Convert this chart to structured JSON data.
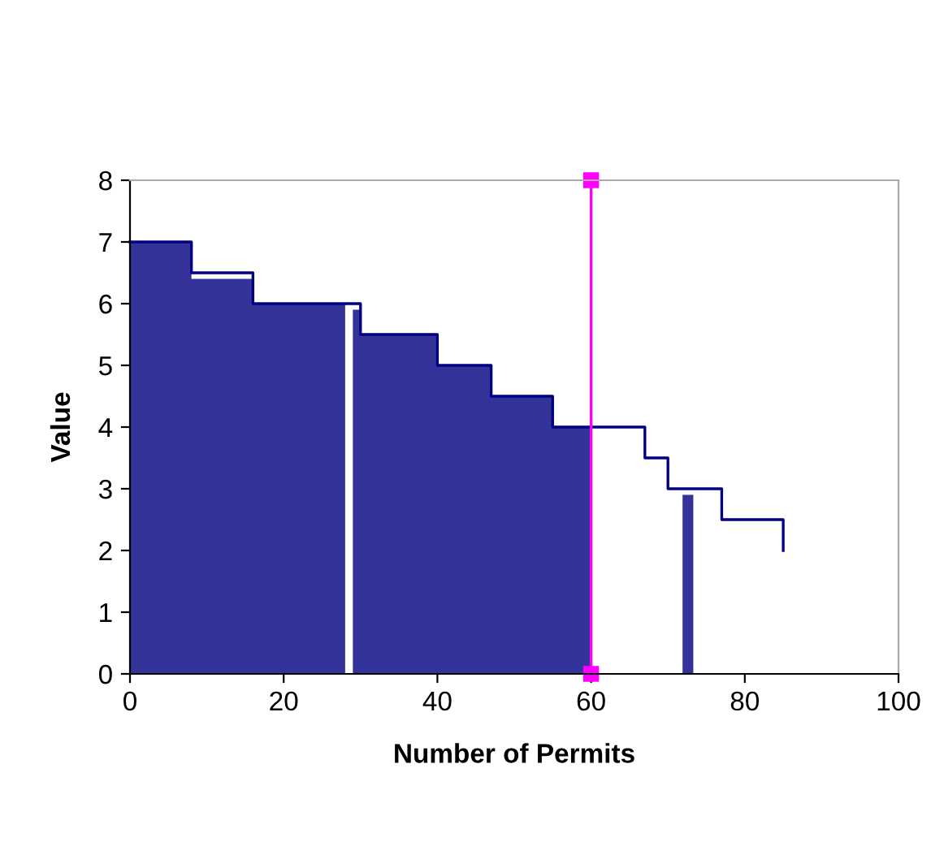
{
  "chart_data": {
    "type": "area",
    "xlabel": "Number of Permits",
    "ylabel": "Value",
    "xlim": [
      0,
      100
    ],
    "xticks": [
      0,
      20,
      40,
      60,
      80,
      100
    ],
    "ylim": [
      0,
      8
    ],
    "yticks": [
      0,
      1,
      2,
      3,
      4,
      5,
      6,
      7,
      8
    ],
    "grid": false,
    "legend": false,
    "series": [
      {
        "color": "#333399",
        "x": [
          0,
          8,
          8,
          16,
          16,
          28
        ],
        "values": [
          7,
          7,
          6.4,
          6.4,
          6,
          6
        ]
      },
      {
        "color": "#333399",
        "x": [
          29,
          30,
          30,
          40,
          40,
          47,
          47,
          55,
          55,
          60
        ],
        "values": [
          5.9,
          5.9,
          5.5,
          5.5,
          5,
          5,
          4.5,
          4.5,
          4,
          4
        ]
      },
      {
        "type": "bar",
        "color": "#333399",
        "x": [
          72.6
        ],
        "values": [
          2.9
        ]
      },
      {
        "type": "line",
        "color": "#000080",
        "x": [
          0,
          8,
          8,
          16,
          16,
          30,
          30,
          40,
          40,
          47,
          47,
          55,
          55,
          67,
          67,
          70,
          70,
          77,
          77,
          85,
          85
        ],
        "values": [
          7,
          7,
          6.5,
          6.5,
          6,
          6,
          5.5,
          5.5,
          5,
          5,
          4.5,
          4.5,
          4,
          4,
          3.5,
          3.5,
          3,
          3,
          2.5,
          2.5,
          2
        ]
      },
      {
        "type": "line",
        "color": "#ff00ff",
        "marker": "square",
        "x": [
          60,
          60
        ],
        "values": [
          0,
          8
        ]
      }
    ]
  }
}
